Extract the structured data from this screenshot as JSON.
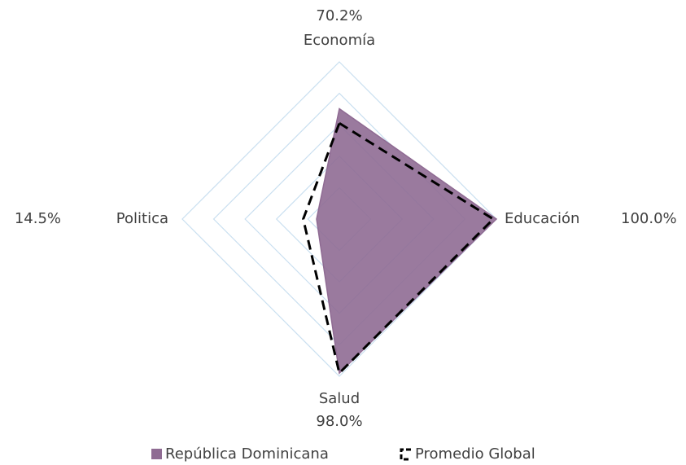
{
  "chart_data": {
    "type": "radar",
    "categories": [
      "Economía",
      "Educación",
      "Salud",
      "Politica"
    ],
    "rlim": [
      0,
      100
    ],
    "rticks": [
      20,
      40,
      60,
      80,
      100
    ],
    "grid": true,
    "legend": "bottom",
    "series": [
      {
        "name": "República Dominicana",
        "color": "#8f6b93",
        "values": [
          70.2,
          100,
          98,
          14.5
        ],
        "value_labels": [
          "70.2%",
          "100.0%",
          "98.0%",
          "14.5%"
        ]
      },
      {
        "name": "Promedio Global",
        "color": "#000000",
        "values": [
          61,
          98,
          98,
          23
        ]
      }
    ]
  }
}
